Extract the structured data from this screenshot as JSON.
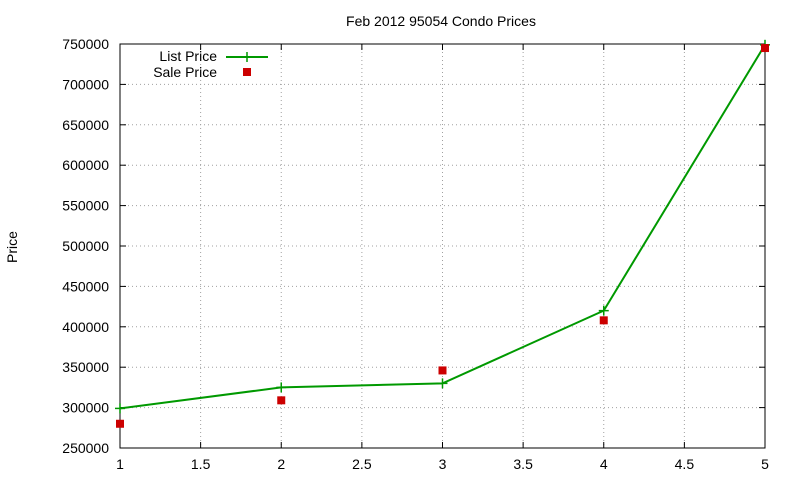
{
  "chart_data": {
    "type": "line",
    "title": "Feb 2012 95054 Condo Prices",
    "xlabel": "",
    "ylabel": "Price",
    "xlim": [
      1,
      5
    ],
    "ylim": [
      250000,
      750000
    ],
    "x_ticks": [
      "1",
      "1.5",
      "2",
      "2.5",
      "3",
      "3.5",
      "4",
      "4.5",
      "5"
    ],
    "y_ticks": [
      "250000",
      "300000",
      "350000",
      "400000",
      "450000",
      "500000",
      "550000",
      "600000",
      "650000",
      "700000",
      "750000"
    ],
    "grid": true,
    "legend_position": "top-left",
    "series": [
      {
        "name": "List Price",
        "style": "line+plus-markers",
        "color": "#009900",
        "x": [
          1,
          2,
          3,
          4,
          5
        ],
        "y": [
          299000,
          325000,
          330000,
          420000,
          749000
        ]
      },
      {
        "name": "Sale Price",
        "style": "square-markers",
        "color": "#cc0000",
        "x": [
          1,
          2,
          3,
          4,
          5
        ],
        "y": [
          280000,
          309000,
          346000,
          408000,
          745000
        ]
      }
    ]
  }
}
